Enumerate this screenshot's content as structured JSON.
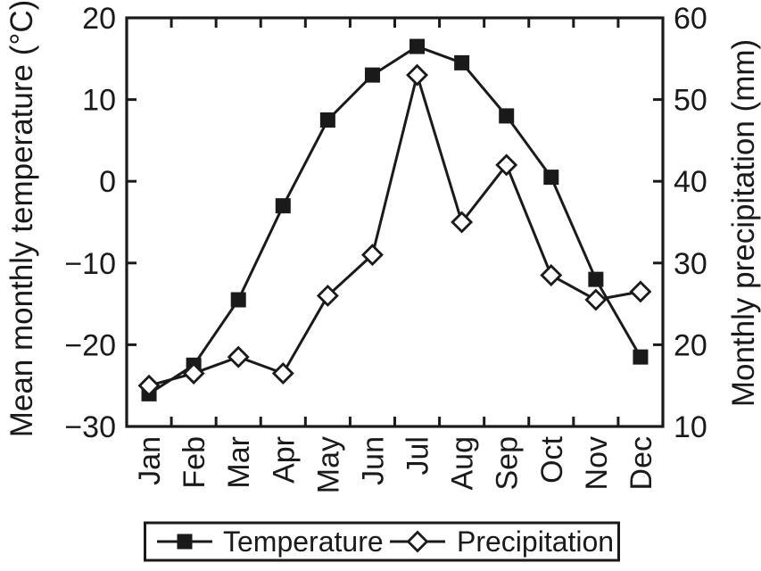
{
  "figure": {
    "ink_color": "#1a1a1a",
    "background_color": "#ffffff"
  },
  "chart_data": {
    "type": "line",
    "categories": [
      "Jan",
      "Feb",
      "Mar",
      "Apr",
      "May",
      "Jun",
      "Jul",
      "Aug",
      "Sep",
      "Oct",
      "Nov",
      "Dec"
    ],
    "series": [
      {
        "name": "Temperature",
        "axis": "left",
        "marker": "filled-square",
        "values": [
          -26,
          -22.5,
          -14.5,
          -3,
          7.5,
          13,
          16.5,
          14.5,
          8,
          0.5,
          -12,
          -21.5
        ]
      },
      {
        "name": "Precipitation",
        "axis": "right",
        "marker": "open-diamond",
        "values": [
          15,
          16.5,
          18.5,
          16.5,
          26,
          31,
          53,
          35,
          42,
          28.5,
          25.5,
          26.5
        ]
      }
    ],
    "left_axis": {
      "label": "Mean monthly temperature (°C)",
      "min": -30,
      "max": 20,
      "ticks": [
        20,
        10,
        0,
        -10,
        -20,
        -30
      ]
    },
    "right_axis": {
      "label": "Monthly precipitation (mm)",
      "min": 10,
      "max": 60,
      "ticks": [
        60,
        50,
        40,
        30,
        20,
        10
      ]
    },
    "x_axis": {
      "tick_style": "category-boundaries"
    },
    "grid": false,
    "legend_position": "bottom"
  }
}
